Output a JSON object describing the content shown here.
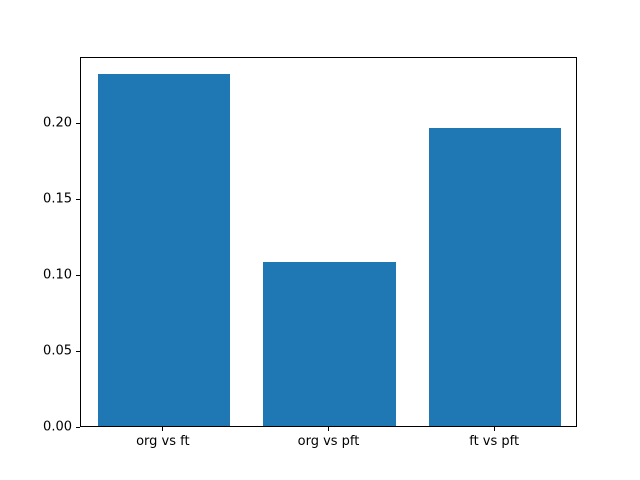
{
  "chart_data": {
    "type": "bar",
    "categories": [
      "org vs ft",
      "org vs pft",
      "ft vs pft"
    ],
    "values": [
      0.232,
      0.108,
      0.196
    ],
    "title": "",
    "xlabel": "",
    "ylabel": "",
    "ylim": [
      0,
      0.2436
    ],
    "yticks": [
      0.0,
      0.05,
      0.1,
      0.15,
      0.2
    ],
    "ytick_labels": [
      "0.00",
      "0.05",
      "0.10",
      "0.15",
      "0.20"
    ],
    "bar_color": "#1f77b4",
    "bar_width_fraction": 0.8,
    "grid": false,
    "legend": false,
    "background_color": "#ffffff",
    "axis_color": "#000000"
  }
}
